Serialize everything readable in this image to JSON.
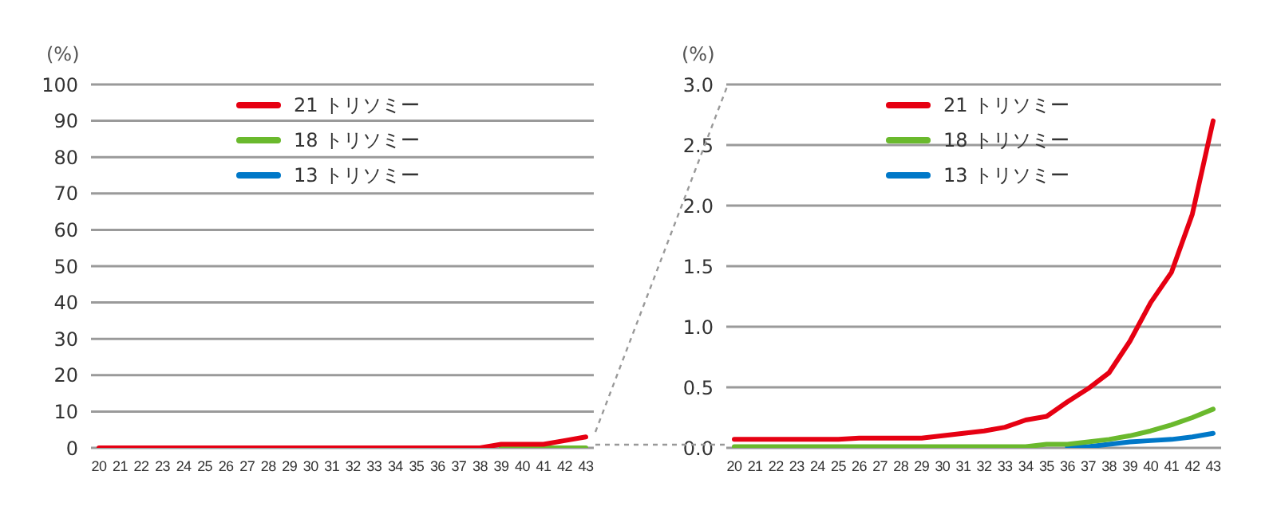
{
  "chart_data": [
    {
      "type": "line",
      "ylabel": "(%)",
      "categories": [
        "20",
        "21",
        "22",
        "23",
        "24",
        "25",
        "26",
        "27",
        "28",
        "29",
        "30",
        "31",
        "32",
        "33",
        "34",
        "35",
        "36",
        "37",
        "38",
        "39",
        "40",
        "41",
        "42",
        "43"
      ],
      "series": [
        {
          "name": "21 トリソミー",
          "color": "#e60012",
          "values": [
            0,
            0,
            0,
            0,
            0,
            0,
            0,
            0,
            0,
            0,
            0,
            0,
            0,
            0,
            0,
            0,
            0,
            0,
            0,
            1,
            1,
            1,
            2,
            3
          ]
        },
        {
          "name": "18 トリソミー",
          "color": "#6ab92d",
          "values": [
            null,
            null,
            null,
            null,
            null,
            null,
            null,
            null,
            null,
            null,
            null,
            null,
            null,
            null,
            null,
            null,
            null,
            null,
            null,
            0,
            0,
            0,
            0,
            0
          ]
        },
        {
          "name": "13 トリソミー",
          "color": "#0078c8",
          "values": [
            null,
            null,
            null,
            null,
            null,
            null,
            null,
            null,
            null,
            null,
            null,
            null,
            null,
            null,
            null,
            null,
            null,
            null,
            null,
            null,
            null,
            null,
            null,
            null
          ]
        }
      ],
      "ylim": [
        0,
        100
      ],
      "yticks": [
        0,
        10,
        20,
        30,
        40,
        50,
        60,
        70,
        80,
        90,
        100
      ],
      "grid": "y",
      "legend": "top",
      "line_style": "solid",
      "marker": "none"
    },
    {
      "type": "line",
      "ylabel": "(%)",
      "categories": [
        "20",
        "21",
        "22",
        "23",
        "24",
        "25",
        "26",
        "27",
        "28",
        "29",
        "30",
        "31",
        "32",
        "33",
        "34",
        "35",
        "36",
        "37",
        "38",
        "39",
        "40",
        "41",
        "42",
        "43"
      ],
      "series": [
        {
          "name": "21 トリソミー",
          "color": "#e60012",
          "values": [
            0.07,
            0.07,
            0.07,
            0.07,
            0.07,
            0.07,
            0.08,
            0.08,
            0.08,
            0.08,
            0.1,
            0.12,
            0.14,
            0.17,
            0.23,
            0.26,
            0.38,
            0.49,
            0.62,
            0.88,
            1.2,
            1.45,
            1.93,
            2.7
          ]
        },
        {
          "name": "18 トリソミー",
          "color": "#6ab92d",
          "values": [
            0.01,
            0.01,
            0.01,
            0.01,
            0.01,
            0.01,
            0.01,
            0.01,
            0.01,
            0.01,
            0.01,
            0.01,
            0.01,
            0.01,
            0.01,
            0.03,
            0.03,
            0.05,
            0.07,
            0.1,
            0.14,
            0.19,
            0.25,
            0.32
          ]
        },
        {
          "name": "13 トリソミー",
          "color": "#0078c8",
          "values": [
            null,
            null,
            null,
            null,
            null,
            null,
            null,
            null,
            null,
            null,
            null,
            null,
            null,
            null,
            null,
            null,
            0.01,
            0.01,
            0.03,
            0.05,
            0.06,
            0.07,
            0.09,
            0.12
          ]
        }
      ],
      "ylim": [
        0,
        3
      ],
      "yticks": [
        {
          "value": 0,
          "label": "0.0"
        },
        {
          "value": 0.5,
          "label": "0.5"
        },
        {
          "value": 1,
          "label": "1.0"
        },
        {
          "value": 1.5,
          "label": "1.5"
        },
        {
          "value": 2,
          "label": "2.0"
        },
        {
          "value": 2.5,
          "label": "2.5"
        },
        {
          "value": 3,
          "label": "3.0"
        }
      ],
      "grid": "y",
      "legend": "top",
      "line_style": "solid",
      "marker": "none"
    }
  ]
}
